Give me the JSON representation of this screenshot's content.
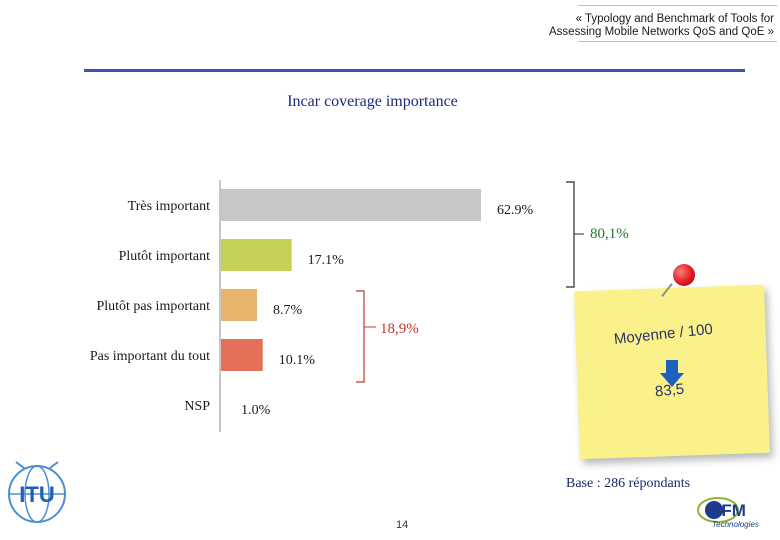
{
  "header": {
    "line1": "« Typology and Benchmark of Tools for",
    "line2": "Assessing Mobile Networks QoS and QoE »"
  },
  "chart_data": {
    "type": "bar",
    "orientation": "horizontal",
    "title": "Incar coverage importance",
    "categories": [
      "Très important",
      "Plutôt important",
      "Plutôt pas important",
      "Pas important du tout",
      "NSP"
    ],
    "values": [
      62.9,
      17.1,
      8.7,
      10.1,
      1.0
    ],
    "value_labels": [
      "62.9%",
      "17.1%",
      "8.7%",
      "10.1%",
      "1.0%"
    ],
    "colors": [
      "#c7c7c7",
      "#c4d155",
      "#e8b36b",
      "#e4705a",
      "#ffffff"
    ],
    "label_colors": [
      "#1a1a1a",
      "#1a1a1a",
      "#1a1a1a",
      "#1a1a1a",
      "#1a1a1a"
    ],
    "groups": [
      {
        "label": "80,1%",
        "color": "#1f7a2f"
      },
      {
        "label": "18,9%",
        "color": "#c0392b"
      }
    ]
  },
  "note": {
    "label": "Moyenne / 100",
    "value": "83,5",
    "text_color": "#2a3168",
    "arrow_color": "#1f5fbf"
  },
  "footer": {
    "base": "Base : 286 répondants",
    "page": "14",
    "logo_itu": "ITU",
    "logo_sfm": "SFM",
    "logo_sfm_sub": "Technologies"
  }
}
